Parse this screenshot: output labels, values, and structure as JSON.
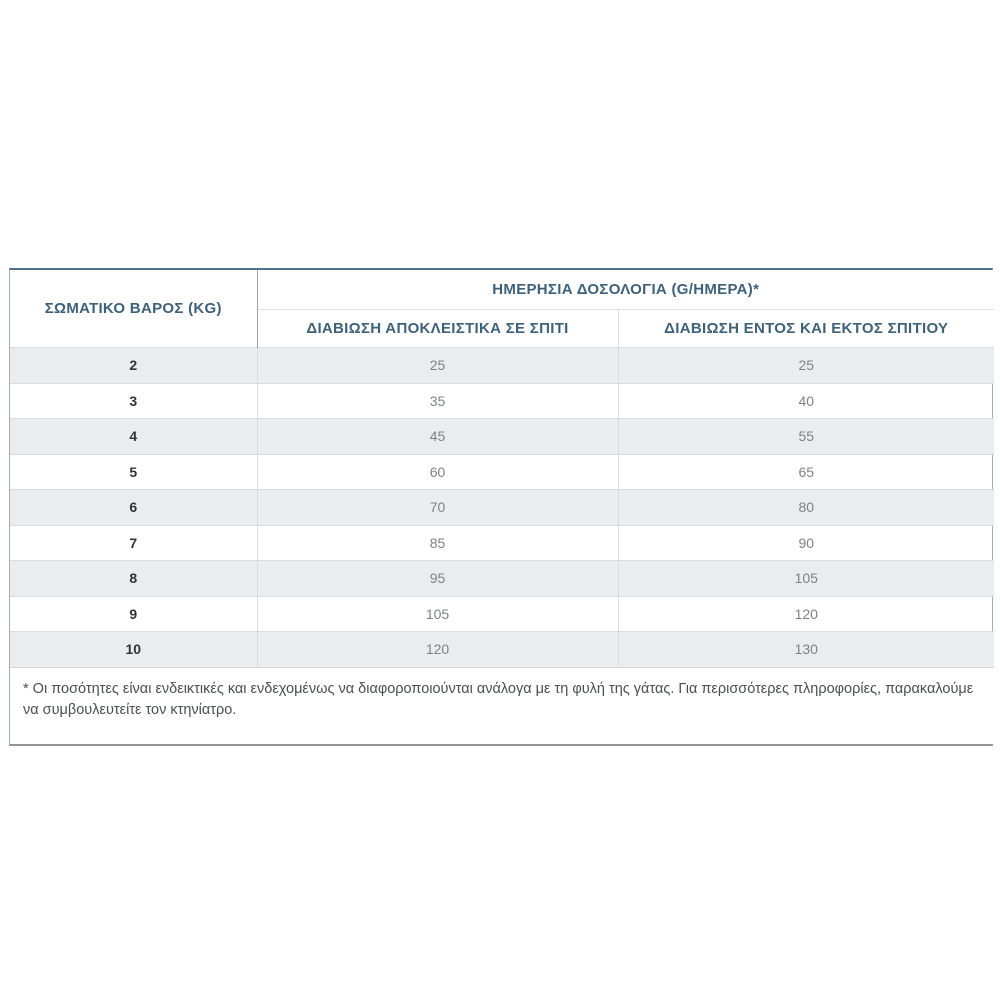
{
  "table": {
    "weight_header": "ΣΩΜΑΤΙΚΟ ΒΑΡΟΣ (KG)",
    "main_header": "ΗΜΕΡΗΣΙΑ ΔΟΣΟΛΟΓΙΑ (G/ΗΜΕΡΑ)*",
    "sub_header_indoor": "ΔΙΑΒΙΩΣΗ ΑΠΟΚΛΕΙΣΤΙΚΑ ΣΕ ΣΠΙΤΙ",
    "sub_header_outdoor": "ΔΙΑΒΙΩΣΗ ΕΝΤΟΣ ΚΑΙ ΕΚΤΟΣ ΣΠΙΤΙΟΥ",
    "footnote": "* Οι ποσότητες είναι ενδεικτικές και ενδεχομένως να διαφοροποιούνται ανάλογα με τη φυλή της γάτας. Για περισσότερες πληροφορίες, παρακαλούμε να συμβουλευτείτε τον κτηνίατρο."
  },
  "colors": {
    "header_text": "#3e617a",
    "stripe_row": "#e9edef",
    "top_border": "#50718a",
    "outer_border": "#a6abae",
    "grid_line": "#d9dcdd",
    "data_text": "#7e8285",
    "weight_text": "#303437",
    "footnote_text": "#4b4e51"
  },
  "chart_data": {
    "type": "table",
    "title": "ΗΜΕΡΗΣΙΑ ΔΟΣΟΛΟΓΙΑ (G/ΗΜΕΡΑ)*",
    "columns": [
      "ΣΩΜΑΤΙΚΟ ΒΑΡΟΣ (KG)",
      "ΔΙΑΒΙΩΣΗ ΑΠΟΚΛΕΙΣΤΙΚΑ ΣΕ ΣΠΙΤΙ",
      "ΔΙΑΒΙΩΣΗ ΕΝΤΟΣ ΚΑΙ ΕΚΤΟΣ ΣΠΙΤΙΟΥ"
    ],
    "rows": [
      [
        2,
        25,
        25
      ],
      [
        3,
        35,
        40
      ],
      [
        4,
        45,
        55
      ],
      [
        5,
        60,
        65
      ],
      [
        6,
        70,
        80
      ],
      [
        7,
        85,
        90
      ],
      [
        8,
        95,
        105
      ],
      [
        9,
        105,
        120
      ],
      [
        10,
        120,
        130
      ]
    ],
    "footnote": "* Οι ποσότητες είναι ενδεικτικές και ενδεχομένως να διαφοροποιούνται ανάλογα με τη φυλή της γάτας. Για περισσότερες πληροφορίες, παρακαλούμε να συμβουλευτείτε τον κτηνίατρο.",
    "layout": "two-level header; first column spans both header rows; zebra striping on odd data rows; footnote inside table border"
  }
}
